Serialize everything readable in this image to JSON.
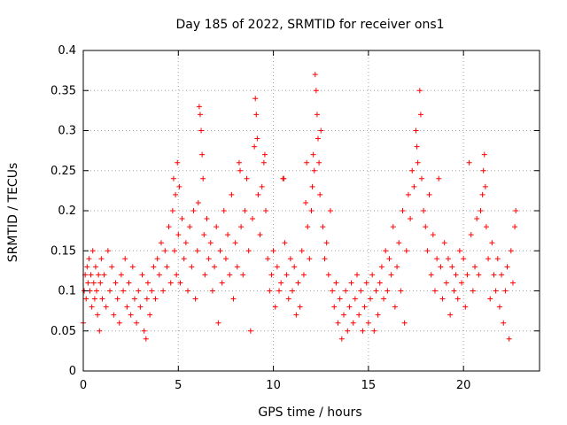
{
  "chart_data": {
    "type": "scatter",
    "title": "Day 185 of 2022, SRMTID for receiver ons1",
    "xlabel": "GPS time / hours",
    "ylabel": "SRMTID / TECUs",
    "xlim": [
      0,
      24
    ],
    "ylim": [
      0,
      0.4
    ],
    "xticks": [
      0,
      5,
      10,
      15,
      20
    ],
    "xtick_labels": [
      "0",
      "5",
      "10",
      "15",
      "20"
    ],
    "yticks": [
      0,
      0.05,
      0.1,
      0.15,
      0.2,
      0.25,
      0.3,
      0.35,
      0.4
    ],
    "ytick_labels": [
      "0",
      "0.05",
      "0.1",
      "0.15",
      "0.2",
      "0.25",
      "0.3",
      "0.35",
      "0.4"
    ],
    "grid": true,
    "legend": "none",
    "marker": "+",
    "color": "#ff0000",
    "series": [
      {
        "name": "SRMTID",
        "points": [
          [
            0.0,
            0.06
          ],
          [
            0.05,
            0.1
          ],
          [
            0.1,
            0.12
          ],
          [
            0.15,
            0.09
          ],
          [
            0.2,
            0.13
          ],
          [
            0.25,
            0.11
          ],
          [
            0.3,
            0.14
          ],
          [
            0.35,
            0.1
          ],
          [
            0.4,
            0.12
          ],
          [
            0.45,
            0.08
          ],
          [
            0.5,
            0.15
          ],
          [
            0.55,
            0.11
          ],
          [
            0.6,
            0.09
          ],
          [
            0.65,
            0.13
          ],
          [
            0.7,
            0.1
          ],
          [
            0.75,
            0.07
          ],
          [
            0.8,
            0.12
          ],
          [
            0.85,
            0.05
          ],
          [
            0.9,
            0.11
          ],
          [
            0.95,
            0.14
          ],
          [
            1.0,
            0.09
          ],
          [
            1.1,
            0.12
          ],
          [
            1.2,
            0.08
          ],
          [
            1.3,
            0.15
          ],
          [
            1.4,
            0.1
          ],
          [
            1.5,
            0.13
          ],
          [
            1.6,
            0.07
          ],
          [
            1.7,
            0.11
          ],
          [
            1.8,
            0.09
          ],
          [
            1.9,
            0.06
          ],
          [
            2.0,
            0.12
          ],
          [
            2.1,
            0.1
          ],
          [
            2.2,
            0.14
          ],
          [
            2.3,
            0.08
          ],
          [
            2.4,
            0.11
          ],
          [
            2.5,
            0.07
          ],
          [
            2.6,
            0.13
          ],
          [
            2.7,
            0.09
          ],
          [
            2.8,
            0.06
          ],
          [
            2.9,
            0.1
          ],
          [
            3.0,
            0.08
          ],
          [
            3.1,
            0.12
          ],
          [
            3.2,
            0.05
          ],
          [
            3.3,
            0.04
          ],
          [
            3.35,
            0.09
          ],
          [
            3.4,
            0.11
          ],
          [
            3.5,
            0.07
          ],
          [
            3.6,
            0.1
          ],
          [
            3.7,
            0.13
          ],
          [
            3.8,
            0.09
          ],
          [
            3.9,
            0.14
          ],
          [
            4.0,
            0.12
          ],
          [
            4.1,
            0.16
          ],
          [
            4.2,
            0.1
          ],
          [
            4.3,
            0.15
          ],
          [
            4.4,
            0.13
          ],
          [
            4.5,
            0.18
          ],
          [
            4.6,
            0.11
          ],
          [
            4.7,
            0.2
          ],
          [
            4.75,
            0.24
          ],
          [
            4.8,
            0.15
          ],
          [
            4.85,
            0.22
          ],
          [
            4.9,
            0.12
          ],
          [
            4.95,
            0.26
          ],
          [
            5.0,
            0.17
          ],
          [
            5.05,
            0.23
          ],
          [
            5.1,
            0.11
          ],
          [
            5.2,
            0.19
          ],
          [
            5.3,
            0.14
          ],
          [
            5.4,
            0.16
          ],
          [
            5.5,
            0.1
          ],
          [
            5.6,
            0.18
          ],
          [
            5.7,
            0.13
          ],
          [
            5.8,
            0.2
          ],
          [
            5.9,
            0.09
          ],
          [
            6.0,
            0.15
          ],
          [
            6.05,
            0.21
          ],
          [
            6.1,
            0.33
          ],
          [
            6.15,
            0.32
          ],
          [
            6.2,
            0.3
          ],
          [
            6.25,
            0.27
          ],
          [
            6.3,
            0.24
          ],
          [
            6.35,
            0.17
          ],
          [
            6.4,
            0.12
          ],
          [
            6.5,
            0.19
          ],
          [
            6.6,
            0.14
          ],
          [
            6.7,
            0.16
          ],
          [
            6.8,
            0.1
          ],
          [
            6.9,
            0.13
          ],
          [
            7.0,
            0.18
          ],
          [
            7.1,
            0.06
          ],
          [
            7.2,
            0.15
          ],
          [
            7.3,
            0.11
          ],
          [
            7.4,
            0.2
          ],
          [
            7.5,
            0.14
          ],
          [
            7.6,
            0.17
          ],
          [
            7.7,
            0.12
          ],
          [
            7.8,
            0.22
          ],
          [
            7.9,
            0.09
          ],
          [
            8.0,
            0.16
          ],
          [
            8.1,
            0.13
          ],
          [
            8.2,
            0.26
          ],
          [
            8.25,
            0.25
          ],
          [
            8.3,
            0.18
          ],
          [
            8.4,
            0.12
          ],
          [
            8.5,
            0.2
          ],
          [
            8.6,
            0.24
          ],
          [
            8.7,
            0.15
          ],
          [
            8.8,
            0.05
          ],
          [
            8.9,
            0.19
          ],
          [
            9.0,
            0.28
          ],
          [
            9.05,
            0.34
          ],
          [
            9.1,
            0.32
          ],
          [
            9.15,
            0.29
          ],
          [
            9.2,
            0.22
          ],
          [
            9.3,
            0.17
          ],
          [
            9.4,
            0.23
          ],
          [
            9.5,
            0.26
          ],
          [
            9.55,
            0.27
          ],
          [
            9.6,
            0.2
          ],
          [
            9.7,
            0.14
          ],
          [
            9.8,
            0.1
          ],
          [
            9.9,
            0.12
          ],
          [
            10.0,
            0.15
          ],
          [
            10.1,
            0.08
          ],
          [
            10.2,
            0.13
          ],
          [
            10.3,
            0.1
          ],
          [
            10.4,
            0.11
          ],
          [
            10.5,
            0.24
          ],
          [
            10.55,
            0.24
          ],
          [
            10.6,
            0.16
          ],
          [
            10.7,
            0.12
          ],
          [
            10.8,
            0.09
          ],
          [
            10.9,
            0.14
          ],
          [
            11.0,
            0.1
          ],
          [
            11.1,
            0.13
          ],
          [
            11.2,
            0.07
          ],
          [
            11.3,
            0.11
          ],
          [
            11.4,
            0.08
          ],
          [
            11.5,
            0.15
          ],
          [
            11.6,
            0.12
          ],
          [
            11.7,
            0.21
          ],
          [
            11.75,
            0.26
          ],
          [
            11.8,
            0.18
          ],
          [
            11.9,
            0.14
          ],
          [
            12.0,
            0.2
          ],
          [
            12.05,
            0.23
          ],
          [
            12.1,
            0.27
          ],
          [
            12.15,
            0.25
          ],
          [
            12.2,
            0.37
          ],
          [
            12.25,
            0.35
          ],
          [
            12.3,
            0.32
          ],
          [
            12.35,
            0.29
          ],
          [
            12.4,
            0.26
          ],
          [
            12.45,
            0.22
          ],
          [
            12.5,
            0.3
          ],
          [
            12.6,
            0.18
          ],
          [
            12.7,
            0.14
          ],
          [
            12.8,
            0.16
          ],
          [
            12.9,
            0.12
          ],
          [
            13.0,
            0.2
          ],
          [
            13.1,
            0.1
          ],
          [
            13.2,
            0.08
          ],
          [
            13.3,
            0.11
          ],
          [
            13.4,
            0.06
          ],
          [
            13.5,
            0.09
          ],
          [
            13.6,
            0.04
          ],
          [
            13.7,
            0.07
          ],
          [
            13.8,
            0.1
          ],
          [
            13.9,
            0.05
          ],
          [
            14.0,
            0.08
          ],
          [
            14.1,
            0.11
          ],
          [
            14.2,
            0.06
          ],
          [
            14.3,
            0.09
          ],
          [
            14.4,
            0.12
          ],
          [
            14.5,
            0.07
          ],
          [
            14.6,
            0.1
          ],
          [
            14.7,
            0.05
          ],
          [
            14.8,
            0.08
          ],
          [
            14.9,
            0.11
          ],
          [
            15.0,
            0.06
          ],
          [
            15.1,
            0.09
          ],
          [
            15.2,
            0.12
          ],
          [
            15.3,
            0.05
          ],
          [
            15.4,
            0.1
          ],
          [
            15.5,
            0.07
          ],
          [
            15.6,
            0.11
          ],
          [
            15.7,
            0.13
          ],
          [
            15.8,
            0.09
          ],
          [
            15.9,
            0.15
          ],
          [
            16.0,
            0.1
          ],
          [
            16.1,
            0.14
          ],
          [
            16.2,
            0.12
          ],
          [
            16.3,
            0.18
          ],
          [
            16.4,
            0.08
          ],
          [
            16.5,
            0.13
          ],
          [
            16.6,
            0.16
          ],
          [
            16.7,
            0.1
          ],
          [
            16.8,
            0.2
          ],
          [
            16.9,
            0.06
          ],
          [
            17.0,
            0.15
          ],
          [
            17.1,
            0.22
          ],
          [
            17.2,
            0.19
          ],
          [
            17.3,
            0.25
          ],
          [
            17.4,
            0.23
          ],
          [
            17.5,
            0.3
          ],
          [
            17.55,
            0.28
          ],
          [
            17.6,
            0.26
          ],
          [
            17.7,
            0.35
          ],
          [
            17.75,
            0.32
          ],
          [
            17.8,
            0.24
          ],
          [
            17.9,
            0.2
          ],
          [
            18.0,
            0.18
          ],
          [
            18.1,
            0.15
          ],
          [
            18.2,
            0.22
          ],
          [
            18.3,
            0.12
          ],
          [
            18.4,
            0.17
          ],
          [
            18.5,
            0.1
          ],
          [
            18.6,
            0.14
          ],
          [
            18.7,
            0.24
          ],
          [
            18.8,
            0.13
          ],
          [
            18.9,
            0.09
          ],
          [
            19.0,
            0.16
          ],
          [
            19.1,
            0.11
          ],
          [
            19.2,
            0.14
          ],
          [
            19.3,
            0.07
          ],
          [
            19.4,
            0.13
          ],
          [
            19.5,
            0.1
          ],
          [
            19.6,
            0.12
          ],
          [
            19.7,
            0.09
          ],
          [
            19.8,
            0.15
          ],
          [
            19.9,
            0.11
          ],
          [
            20.0,
            0.14
          ],
          [
            20.1,
            0.08
          ],
          [
            20.2,
            0.12
          ],
          [
            20.3,
            0.26
          ],
          [
            20.4,
            0.17
          ],
          [
            20.5,
            0.1
          ],
          [
            20.6,
            0.13
          ],
          [
            20.7,
            0.19
          ],
          [
            20.8,
            0.12
          ],
          [
            20.9,
            0.2
          ],
          [
            21.0,
            0.22
          ],
          [
            21.05,
            0.25
          ],
          [
            21.1,
            0.27
          ],
          [
            21.15,
            0.23
          ],
          [
            21.2,
            0.18
          ],
          [
            21.3,
            0.14
          ],
          [
            21.4,
            0.09
          ],
          [
            21.5,
            0.16
          ],
          [
            21.6,
            0.12
          ],
          [
            21.7,
            0.1
          ],
          [
            21.8,
            0.14
          ],
          [
            21.9,
            0.08
          ],
          [
            22.0,
            0.12
          ],
          [
            22.1,
            0.06
          ],
          [
            22.2,
            0.1
          ],
          [
            22.3,
            0.13
          ],
          [
            22.4,
            0.04
          ],
          [
            22.5,
            0.15
          ],
          [
            22.6,
            0.11
          ],
          [
            22.7,
            0.18
          ],
          [
            22.75,
            0.2
          ]
        ]
      }
    ]
  }
}
